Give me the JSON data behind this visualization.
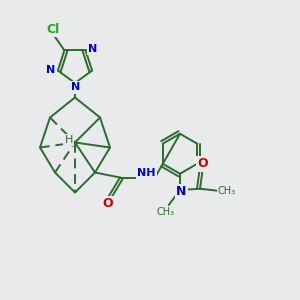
{
  "background_color": "#e8eaec",
  "bond_color": "#2d6b2d",
  "bond_width": 1.4,
  "n_color": "#0000cc",
  "o_color": "#cc0000",
  "cl_color": "#22aa22",
  "figsize": [
    3.0,
    3.0
  ],
  "dpi": 100,
  "xlim": [
    0,
    12
  ],
  "ylim": [
    0,
    12
  ]
}
